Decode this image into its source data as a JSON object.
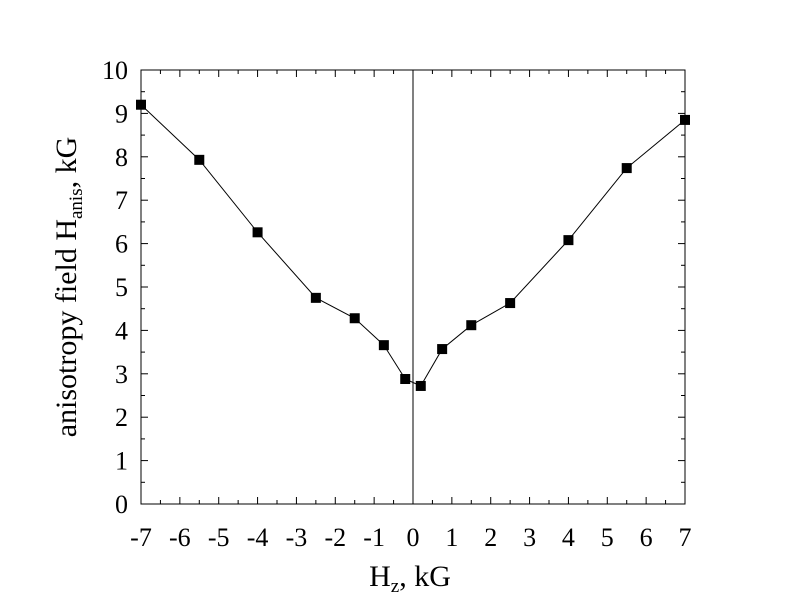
{
  "chart_data": {
    "type": "line",
    "markers": "square",
    "x_label": {
      "main": "H",
      "sub": "z",
      "rest": ", kG"
    },
    "y_label": {
      "main": "anisotropy field H",
      "sub": "anis",
      "rest": ", kG"
    },
    "xlim": [
      -7,
      7
    ],
    "ylim": [
      0,
      10
    ],
    "x_ticks": [
      -7,
      -6,
      -5,
      -4,
      -3,
      -2,
      -1,
      0,
      1,
      2,
      3,
      4,
      5,
      6,
      7
    ],
    "y_ticks": [
      0,
      1,
      2,
      3,
      4,
      5,
      6,
      7,
      8,
      9,
      10
    ],
    "zero_line": true,
    "grid": false,
    "series": [
      {
        "x": [
          -7.0,
          -5.5,
          -4.0,
          -2.5,
          -1.5,
          -0.75,
          -0.2,
          0.2,
          0.75,
          1.5,
          2.5,
          4.0,
          5.5,
          7.0
        ],
        "y": [
          9.2,
          7.93,
          6.26,
          4.75,
          4.28,
          3.66,
          2.88,
          2.72,
          3.57,
          4.12,
          4.63,
          6.08,
          7.74,
          8.85
        ]
      }
    ]
  }
}
